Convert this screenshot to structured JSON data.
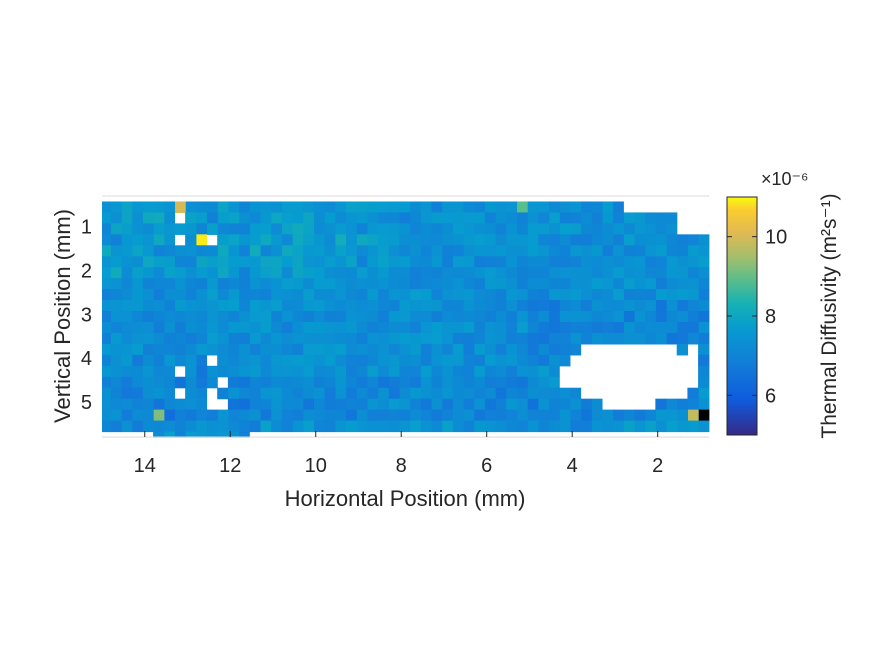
{
  "chart_data": {
    "type": "heatmap",
    "xlabel": "Horizontal Position (mm)",
    "ylabel": "Vertical Position (mm)",
    "x_reversed": true,
    "xlim": [
      0.8,
      15
    ],
    "ylim": [
      0.3,
      5.8
    ],
    "xticks": [
      14,
      12,
      10,
      8,
      6,
      4,
      2
    ],
    "yticks": [
      1,
      2,
      3,
      4,
      5
    ],
    "colorbar": {
      "label": "Thermal Diffusivity (m²s⁻¹)",
      "exponent": "×10⁻⁶",
      "clim": [
        5.0,
        11.0
      ],
      "ticks": [
        6,
        8,
        10
      ],
      "colormap": "parula"
    },
    "grid": {
      "rows": 22,
      "cols": 57,
      "cell_size_mm": 0.25,
      "first_row_center_mm": 0.55,
      "first_col_center_mm": 0.93,
      "typical_value": 7.5,
      "missing_cells_note": "white = no data"
    },
    "hot_spots": [
      {
        "x": 13.2,
        "y": 0.6,
        "value": 10.0
      },
      {
        "x": 12.7,
        "y": 1.3,
        "value": 10.9
      },
      {
        "x": 5.1,
        "y": 0.45,
        "value": 8.9
      },
      {
        "x": 1.2,
        "y": 5.4,
        "value": 9.8
      },
      {
        "x": 13.7,
        "y": 5.4,
        "value": 9.2
      }
    ],
    "min_cell": {
      "x": 0.93,
      "y": 5.4,
      "value": 4.5
    }
  }
}
